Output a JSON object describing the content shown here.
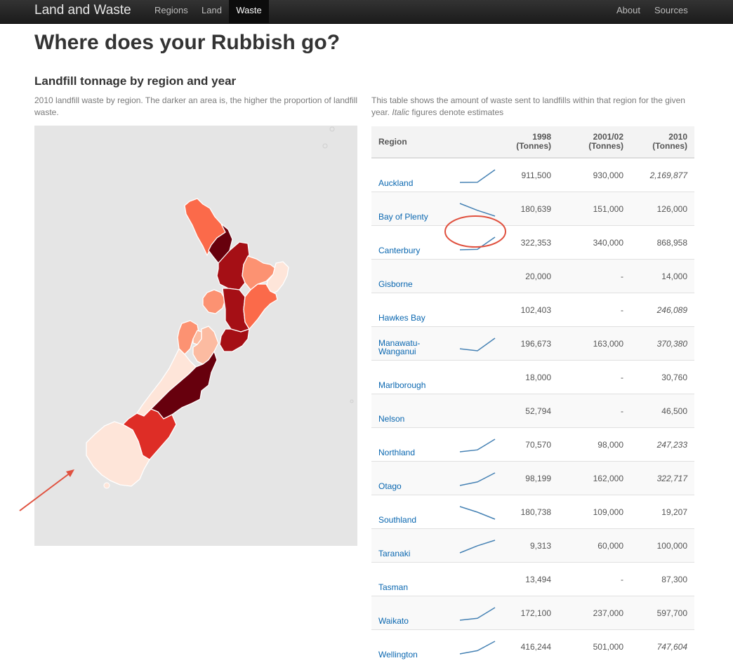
{
  "navbar": {
    "brand": "Land and Waste",
    "links": [
      {
        "label": "Regions"
      },
      {
        "label": "Land"
      },
      {
        "label": "Waste"
      }
    ],
    "right_links": [
      {
        "label": "About"
      },
      {
        "label": "Sources"
      }
    ]
  },
  "page": {
    "title": "Where does your Rubbish go?",
    "section_title": "Landfill tonnage by region and year",
    "map_description": "2010 landfill waste by region. The darker an area is, the higher the proportion of landfill waste.",
    "table_description_before": "This table shows the amount of waste sent to landfills within that region for the given year.",
    "table_description_italic": "Italic",
    "table_description_after": "figures denote estimates"
  },
  "map": {
    "background": "#e5e5e5",
    "palette": [
      "#fee5d9",
      "#fcbba1",
      "#fc9272",
      "#fb6a4a",
      "#de2d26",
      "#a50f15",
      "#67000d"
    ]
  },
  "table": {
    "headers": {
      "region": "Region",
      "y1998": "1998",
      "y2001": "2001/02",
      "y2010": "2010",
      "unit": "(Tonnes)"
    },
    "rows": [
      {
        "region": "Auckland",
        "v1998": "911,500",
        "v2001": "930,000",
        "v2010": "2,169,877",
        "est2010": true,
        "spark": [
          911500,
          930000,
          2169877
        ]
      },
      {
        "region": "Bay of Plenty",
        "v1998": "180,639",
        "v2001": "151,000",
        "v2010": "126,000",
        "est2010": false,
        "spark": [
          180639,
          151000,
          126000
        ]
      },
      {
        "region": "Canterbury",
        "v1998": "322,353",
        "v2001": "340,000",
        "v2010": "868,958",
        "est2010": false,
        "spark": [
          322353,
          340000,
          868958
        ]
      },
      {
        "region": "Gisborne",
        "v1998": "20,000",
        "v2001": "-",
        "v2010": "14,000",
        "est2010": false,
        "spark": []
      },
      {
        "region": "Hawkes Bay",
        "v1998": "102,403",
        "v2001": "-",
        "v2010": "246,089",
        "est2010": true,
        "spark": []
      },
      {
        "region": "Manawatu-Wanganui",
        "v1998": "196,673",
        "v2001": "163,000",
        "v2010": "370,380",
        "est2010": true,
        "spark": [
          196673,
          163000,
          370380
        ]
      },
      {
        "region": "Marlborough",
        "v1998": "18,000",
        "v2001": "-",
        "v2010": "30,760",
        "est2010": false,
        "spark": []
      },
      {
        "region": "Nelson",
        "v1998": "52,794",
        "v2001": "-",
        "v2010": "46,500",
        "est2010": false,
        "spark": []
      },
      {
        "region": "Northland",
        "v1998": "70,570",
        "v2001": "98,000",
        "v2010": "247,233",
        "est2010": true,
        "spark": [
          70570,
          98000,
          247233
        ]
      },
      {
        "region": "Otago",
        "v1998": "98,199",
        "v2001": "162,000",
        "v2010": "322,717",
        "est2010": true,
        "spark": [
          98199,
          162000,
          322717
        ]
      },
      {
        "region": "Southland",
        "v1998": "180,738",
        "v2001": "109,000",
        "v2010": "19,207",
        "est2010": false,
        "spark": [
          180738,
          109000,
          19207
        ]
      },
      {
        "region": "Taranaki",
        "v1998": "9,313",
        "v2001": "60,000",
        "v2010": "100,000",
        "est2010": false,
        "spark": [
          9313,
          60000,
          100000
        ]
      },
      {
        "region": "Tasman",
        "v1998": "13,494",
        "v2001": "-",
        "v2010": "87,300",
        "est2010": false,
        "spark": []
      },
      {
        "region": "Waikato",
        "v1998": "172,100",
        "v2001": "237,000",
        "v2010": "597,700",
        "est2010": false,
        "spark": [
          172100,
          237000,
          597700
        ]
      },
      {
        "region": "Wellington",
        "v1998": "416,244",
        "v2001": "501,000",
        "v2010": "747,604",
        "est2010": true,
        "spark": [
          416244,
          501000,
          747604
        ]
      }
    ]
  },
  "colors": {
    "link": "#0a67b0",
    "sparkline": "#4682b4",
    "annotation": "#e0513f"
  }
}
